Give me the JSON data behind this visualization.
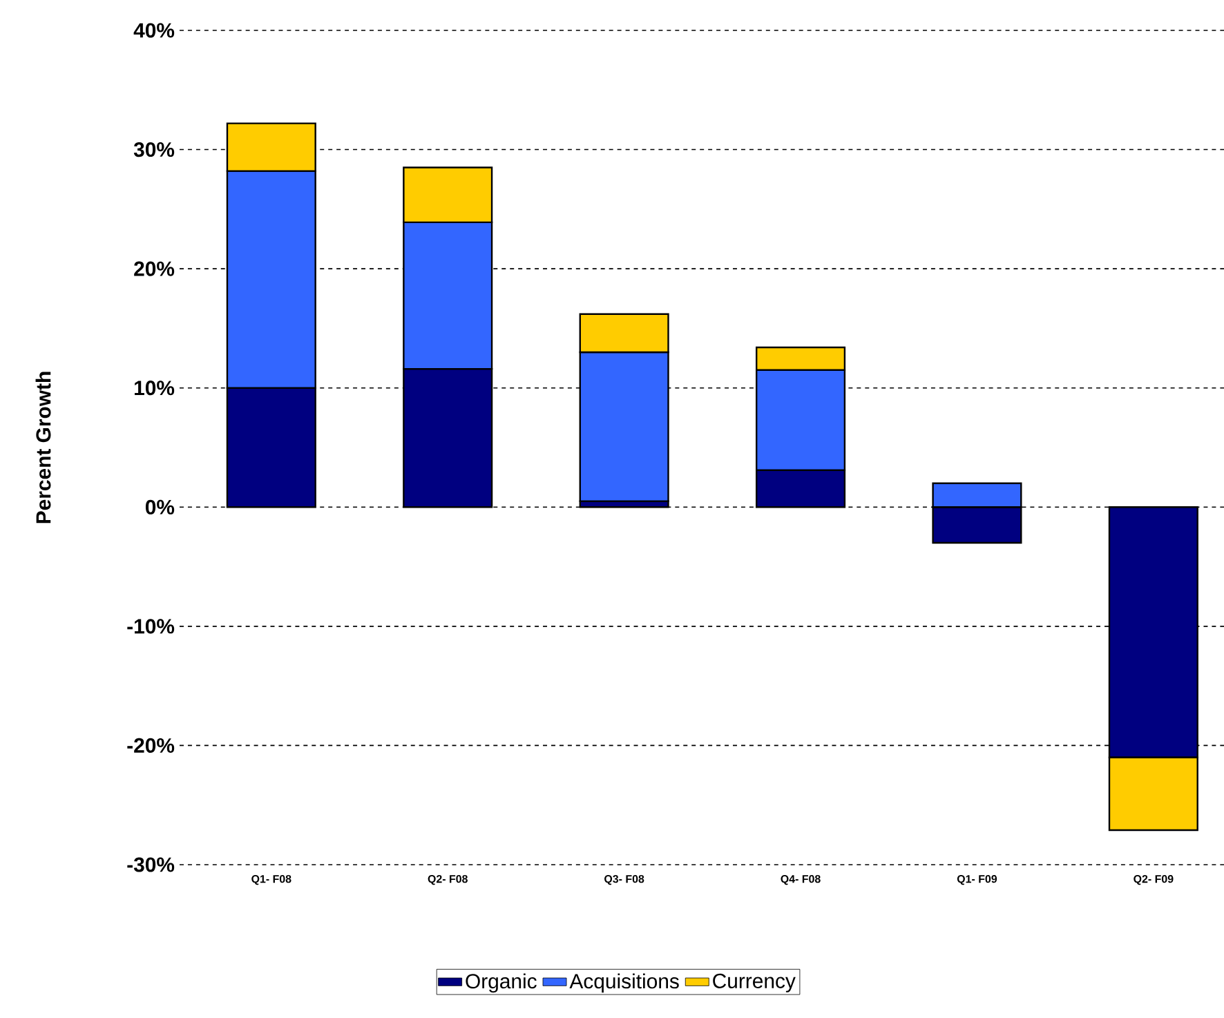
{
  "chart_data": {
    "type": "bar",
    "stacked": true,
    "ylabel": "Percent Growth",
    "categories": [
      "Q1- F08",
      "Q2- F08",
      "Q3- F08",
      "Q4- F08",
      "Q1- F09",
      "Q2- F09"
    ],
    "series": [
      {
        "name": "Organic",
        "color": "#000080",
        "values": [
          10,
          11.6,
          0.5,
          3.1,
          -3,
          -21
        ]
      },
      {
        "name": "Acquisitions",
        "color": "#3366ff",
        "values": [
          18.2,
          12.3,
          12.5,
          8.4,
          2,
          0
        ]
      },
      {
        "name": "Currency",
        "color": "#ffcc00",
        "values": [
          4,
          4.6,
          3.2,
          1.9,
          0,
          -6.1
        ]
      }
    ],
    "ylim": [
      -30,
      40
    ],
    "yticks": [
      {
        "value": -30,
        "label": "-30%"
      },
      {
        "value": -20,
        "label": "-20%"
      },
      {
        "value": -10,
        "label": "-10%"
      },
      {
        "value": 0,
        "label": "0%"
      },
      {
        "value": 10,
        "label": "10%"
      },
      {
        "value": 20,
        "label": "20%"
      },
      {
        "value": 30,
        "label": "30%"
      },
      {
        "value": 40,
        "label": "40%"
      }
    ],
    "grid": "y",
    "legend": "bottom"
  }
}
